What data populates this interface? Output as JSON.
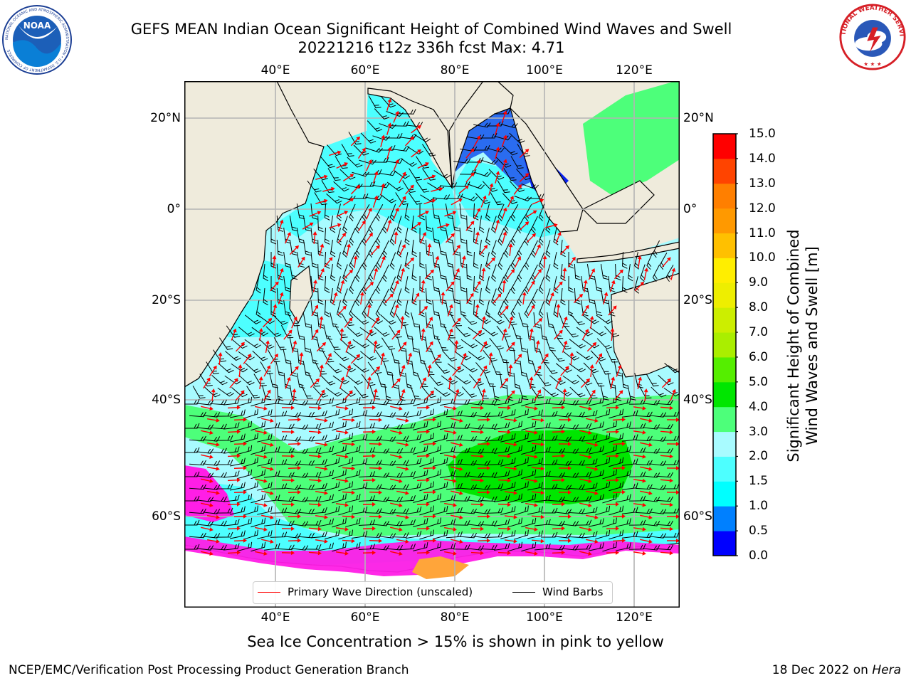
{
  "header": {
    "title_line1": "GEFS MEAN Indian Ocean Significant Height of Combined Wind Waves and Swell",
    "title_line2": "20221216 t12z 336h fcst   Max: 4.71"
  },
  "map": {
    "lon_labels": [
      "40°E",
      "60°E",
      "80°E",
      "100°E",
      "120°E"
    ],
    "lat_labels": [
      "20°N",
      "0°",
      "20°S",
      "40°S",
      "60°S"
    ],
    "land_color": "#efebdc",
    "ocean_color": "#a8fbff",
    "wave_arrow_color": "#ff0000",
    "wind_barb_color": "#000000"
  },
  "colorbar": {
    "title_line1": "Significant Height of Combined",
    "title_line2": "Wind Waves and Swell [m]",
    "ticks": [
      "0.0",
      "0.5",
      "1.0",
      "1.5",
      "2.0",
      "3.0",
      "4.0",
      "5.0",
      "6.0",
      "7.0",
      "8.0",
      "9.0",
      "10.0",
      "11.0",
      "12.0",
      "13.0",
      "14.0",
      "15.0"
    ],
    "colors": [
      "#0000ff",
      "#0080ff",
      "#00ffff",
      "#4dffff",
      "#a8fbff",
      "#4dff7a",
      "#00e600",
      "#55ee00",
      "#aaee00",
      "#ccee00",
      "#eeee00",
      "#ffee00",
      "#ffc000",
      "#ff9900",
      "#ff7f00",
      "#ff4400",
      "#ff0000"
    ]
  },
  "legend": {
    "item1": "Primary Wave Direction (unscaled)",
    "item2": "Wind Barbs"
  },
  "footer": {
    "note": "Sea Ice Concentration > 15% is shown in pink to yellow",
    "credit_left": "NCEP/EMC/Verification Post Processing Product Generation Branch",
    "date": "18 Dec 2022 on",
    "machine": "Hera"
  },
  "logos": {
    "left": "NOAA",
    "left_ring": "NATIONAL OCEANIC AND ATMOSPHERIC ADMINISTRATION • U.S. DEPARTMENT OF COMMERCE",
    "right_ring": "NATIONAL WEATHER SERVICE"
  }
}
